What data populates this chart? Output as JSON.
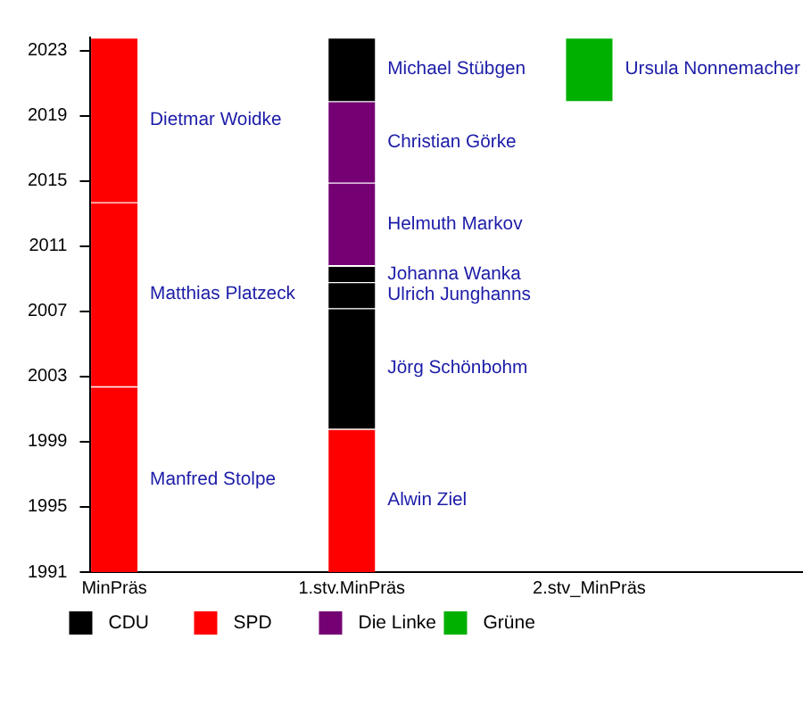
{
  "chart_data": {
    "type": "bar",
    "categories": [
      "MinPräs",
      "1.stv.MinPräs",
      "2.stv_MinPräs"
    ],
    "series": [
      {
        "name": "CDU",
        "color": "#000000",
        "x": [
          "1.stv.MinPräs",
          "1.stv.MinPräs",
          "1.stv.MinPräs",
          "1.stv.MinPräs"
        ],
        "base": [
          1999.8,
          2007.2,
          2008.8,
          2019.9
        ],
        "values": [
          7.4,
          1.6,
          1.0,
          3.9
        ]
      },
      {
        "name": "SPD",
        "color": "#ff0000",
        "x": [
          "MinPräs",
          "MinPräs",
          "MinPräs",
          "1.stv.MinPräs"
        ],
        "base": [
          1991,
          2002.4,
          2013.7,
          1991
        ],
        "values": [
          11.4,
          11.3,
          10.1,
          8.8
        ]
      },
      {
        "name": "Die Linke",
        "color": "#740074",
        "x": [
          "1.stv.MinPräs",
          "1.stv.MinPräs"
        ],
        "base": [
          2009.8,
          2014.9
        ],
        "values": [
          5.1,
          5.0
        ]
      },
      {
        "name": "Grüne",
        "color": "#00b000",
        "x": [
          "2.stv_MinPräs"
        ],
        "base": [
          2019.9
        ],
        "values": [
          3.9
        ]
      }
    ],
    "annotations": [
      "Jörg Schönbohm",
      "Ulrich Junghanns",
      "Johanna Wanka",
      "Michael Stübgen",
      "Manfred Stolpe",
      "Matthias Platzeck",
      "Dietmar Woidke",
      "Alwin Ziel",
      "Helmuth Markov",
      "Christian Görke",
      "Ursula Nonnemacher"
    ],
    "ylim": [
      1991,
      2023.8
    ],
    "yticks": [
      1991,
      1995,
      1999,
      2003,
      2007,
      2011,
      2015,
      2019,
      2023
    ],
    "legend": "bottom left"
  }
}
